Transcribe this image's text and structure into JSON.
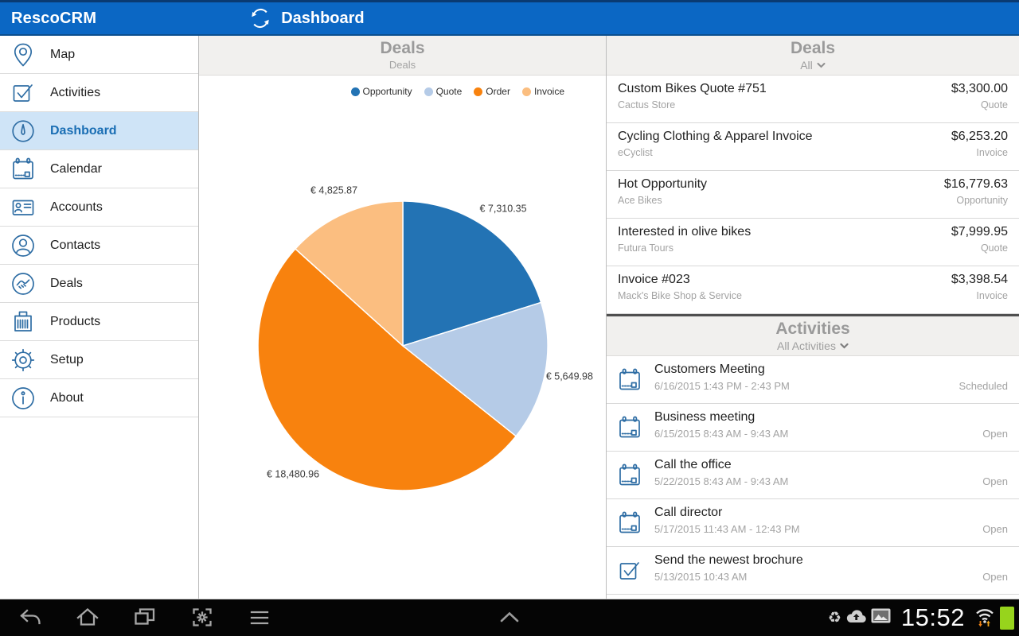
{
  "theme": {
    "accent": "#0b67c4",
    "selected_row": "#cfe4f7",
    "icon_blue": "#2e6da4",
    "header_bg": "#f1f0ee",
    "header_text": "#9a9a9a",
    "battery_green": "#97d41c",
    "status_orange": "#f08418"
  },
  "topbar": {
    "app_title": "RescoCRM",
    "page_title": "Dashboard"
  },
  "sidebar": {
    "items": [
      {
        "label": "Map"
      },
      {
        "label": "Activities"
      },
      {
        "label": "Dashboard"
      },
      {
        "label": "Calendar"
      },
      {
        "label": "Accounts"
      },
      {
        "label": "Contacts"
      },
      {
        "label": "Deals"
      },
      {
        "label": "Products"
      },
      {
        "label": "Setup"
      },
      {
        "label": "About"
      }
    ]
  },
  "chart_panel": {
    "title": "Deals",
    "subtitle": "Deals"
  },
  "chart_data": {
    "type": "pie",
    "title": "Deals",
    "categories": [
      "Opportunity",
      "Quote",
      "Order",
      "Invoice"
    ],
    "values": [
      7310.35,
      5649.98,
      18480.96,
      4825.87
    ],
    "labels": [
      "€ 7,310.35",
      "€ 5,649.98",
      "€ 18,480.96",
      "€ 4,825.87"
    ],
    "colors": [
      "#2373b4",
      "#b5cbe7",
      "#f8820e",
      "#fbbe80"
    ],
    "total": 36267.16,
    "start_angle_deg": 0,
    "direction": "clockwise",
    "legend_position": "top-right"
  },
  "deals_panel": {
    "title": "Deals",
    "filter": "All",
    "rows": [
      {
        "title": "Custom Bikes Quote #751",
        "company": "Cactus Store",
        "amount": "$3,300.00",
        "type": "Quote"
      },
      {
        "title": "Cycling Clothing & Apparel Invoice",
        "company": "eCyclist",
        "amount": "$6,253.20",
        "type": "Invoice"
      },
      {
        "title": "Hot Opportunity",
        "company": "Ace Bikes",
        "amount": "$16,779.63",
        "type": "Opportunity"
      },
      {
        "title": "Interested in olive bikes",
        "company": "Futura Tours",
        "amount": "$7,999.95",
        "type": "Quote"
      },
      {
        "title": "Invoice #023",
        "company": "Mack's Bike Shop & Service",
        "amount": "$3,398.54",
        "type": "Invoice"
      }
    ]
  },
  "activities_panel": {
    "title": "Activities",
    "filter": "All Activities",
    "rows": [
      {
        "icon": "calendar-icon",
        "title": "Customers Meeting",
        "time": "6/16/2015 1:43 PM - 2:43 PM",
        "status": "Scheduled"
      },
      {
        "icon": "calendar-icon",
        "title": "Business meeting",
        "time": "6/15/2015 8:43 AM - 9:43 AM",
        "status": "Open"
      },
      {
        "icon": "calendar-icon",
        "title": "Call the office",
        "time": "5/22/2015 8:43 AM - 9:43 AM",
        "status": "Open"
      },
      {
        "icon": "calendar-icon",
        "title": "Call director",
        "time": "5/17/2015 11:43 AM - 12:43 PM",
        "status": "Open"
      },
      {
        "icon": "task-icon",
        "title": "Send the newest brochure",
        "time": "5/13/2015 10:43 AM",
        "status": "Open"
      }
    ]
  },
  "navbar": {
    "clock": "15:52"
  }
}
